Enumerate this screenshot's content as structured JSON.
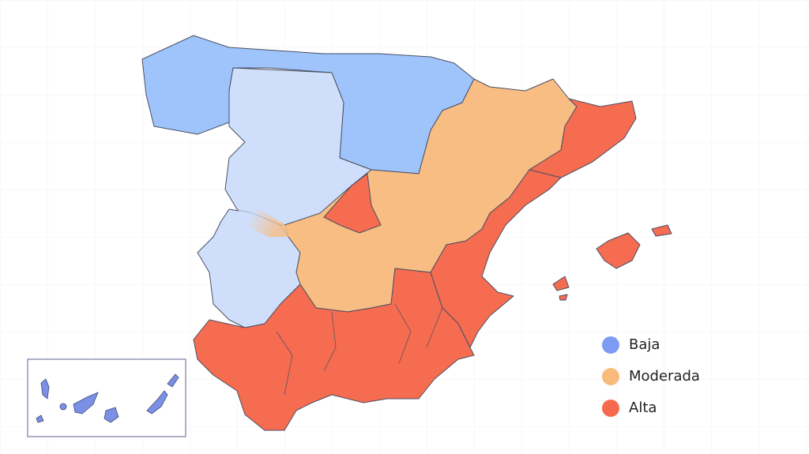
{
  "legend": {
    "items": [
      {
        "label": "Baja",
        "color": "#7f9cf5"
      },
      {
        "label": "Moderada",
        "color": "#f8bb7c"
      },
      {
        "label": "Alta",
        "color": "#f56a4f"
      }
    ]
  }
}
